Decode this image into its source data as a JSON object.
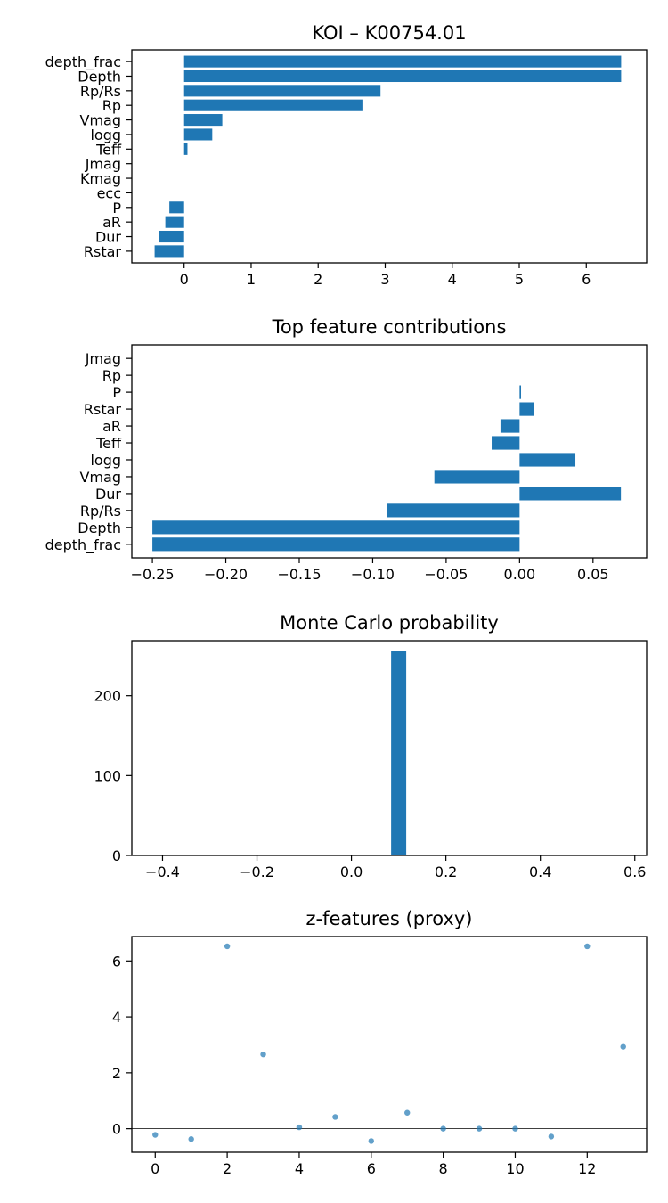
{
  "colors": {
    "bar": "#1f77b4",
    "point": "#1f77b4",
    "zero_line": "#000000"
  },
  "chart_data": [
    {
      "type": "bar",
      "orientation": "horizontal",
      "title": "KOI – K00754.01",
      "categories": [
        "depth_frac",
        "Depth",
        "Rp/Rs",
        "Rp",
        "Vmag",
        "logg",
        "Teff",
        "Jmag",
        "Kmag",
        "ecc",
        "P",
        "aR",
        "Dur",
        "Rstar"
      ],
      "values": [
        6.52,
        6.52,
        2.93,
        2.66,
        0.57,
        0.42,
        0.05,
        0.0,
        0.0,
        0.0,
        -0.22,
        -0.28,
        -0.37,
        -0.44
      ],
      "xlim": [
        -0.78,
        6.9
      ],
      "xticks": [
        0,
        1,
        2,
        3,
        4,
        5,
        6
      ],
      "xtick_labels": [
        "0",
        "1",
        "2",
        "3",
        "4",
        "5",
        "6"
      ],
      "xlabel": "",
      "ylabel": ""
    },
    {
      "type": "bar",
      "orientation": "horizontal",
      "title": "Top feature contributions",
      "categories": [
        "Jmag",
        "Rp",
        "P",
        "Rstar",
        "aR",
        "Teff",
        "logg",
        "Vmag",
        "Dur",
        "Rp/Rs",
        "Depth",
        "depth_frac"
      ],
      "values": [
        0.0,
        0.0,
        0.001,
        0.01,
        -0.013,
        -0.019,
        0.038,
        -0.058,
        0.069,
        -0.09,
        -0.25,
        -0.25
      ],
      "xlim": [
        -0.264,
        0.0865
      ],
      "xticks": [
        -0.25,
        -0.2,
        -0.15,
        -0.1,
        -0.05,
        0.0,
        0.05
      ],
      "xtick_labels": [
        "−0.25",
        "−0.20",
        "−0.15",
        "−0.10",
        "−0.05",
        "0.00",
        "0.05"
      ],
      "xlabel": "",
      "ylabel": ""
    },
    {
      "type": "bar",
      "subtype": "histogram",
      "title": "Monte Carlo probability",
      "bins": [
        {
          "x0": 0.084,
          "x1": 0.116,
          "count": 256
        }
      ],
      "xlim": [
        -0.465,
        0.625
      ],
      "ylim": [
        0,
        268.8
      ],
      "xticks": [
        -0.4,
        -0.2,
        0.0,
        0.2,
        0.4,
        0.6
      ],
      "xtick_labels": [
        "−0.4",
        "−0.2",
        "0.0",
        "0.2",
        "0.4",
        "0.6"
      ],
      "yticks": [
        0,
        100,
        200
      ],
      "ytick_labels": [
        "0",
        "100",
        "200"
      ],
      "xlabel": "",
      "ylabel": ""
    },
    {
      "type": "scatter",
      "title": "z-features (proxy)",
      "x": [
        0,
        1,
        2,
        3,
        4,
        5,
        6,
        7,
        8,
        9,
        10,
        11,
        12,
        13
      ],
      "y": [
        -0.22,
        -0.37,
        6.52,
        2.66,
        0.05,
        0.42,
        -0.44,
        0.57,
        0.0,
        0.0,
        0.0,
        -0.28,
        6.52,
        2.93
      ],
      "zero_line": true,
      "xlim": [
        -0.65,
        13.65
      ],
      "ylim": [
        -0.84,
        6.87
      ],
      "xticks": [
        0,
        2,
        4,
        6,
        8,
        10,
        12
      ],
      "xtick_labels": [
        "0",
        "2",
        "4",
        "6",
        "8",
        "10",
        "12"
      ],
      "yticks": [
        0,
        2,
        4,
        6
      ],
      "ytick_labels": [
        "0",
        "2",
        "4",
        "6"
      ],
      "xlabel": "",
      "ylabel": ""
    }
  ]
}
